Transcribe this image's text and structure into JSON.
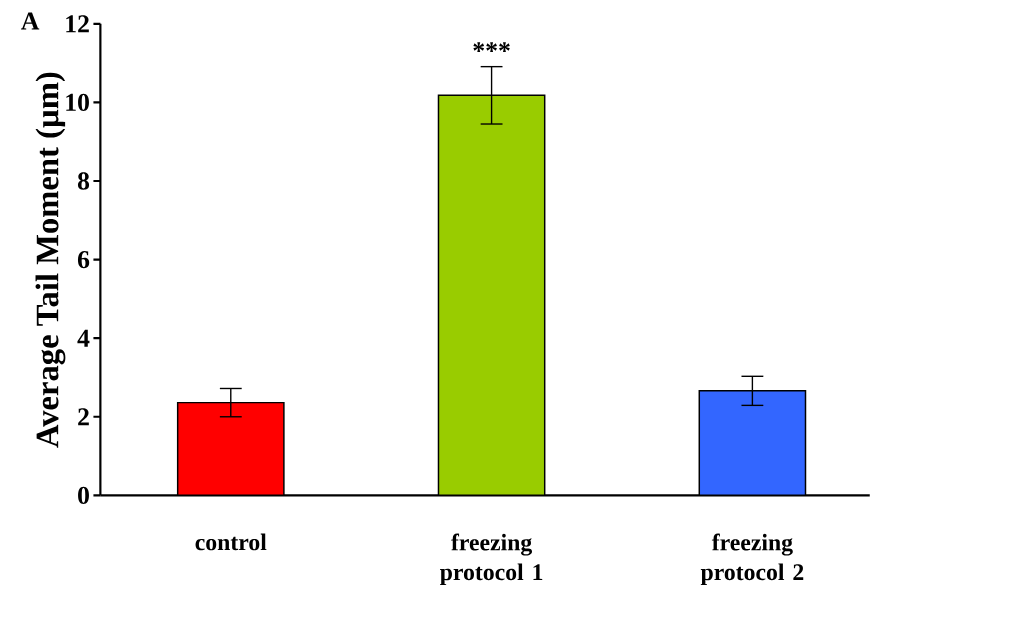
{
  "chart_data": {
    "type": "bar",
    "ylabel": "Average Tail Moment (µm)",
    "categories": [
      "control",
      "freezing protocol 1",
      "freezing protocol 2"
    ],
    "values": [
      2.36,
      10.18,
      2.66
    ],
    "errors": [
      0.36,
      0.73,
      0.37
    ],
    "colors": [
      "#ff0000",
      "#99cc00",
      "#3366ff"
    ],
    "ylim": [
      0,
      12
    ],
    "yticks": [
      0,
      2,
      4,
      6,
      8,
      10,
      12
    ],
    "annotations": [
      "A",
      "***"
    ]
  }
}
